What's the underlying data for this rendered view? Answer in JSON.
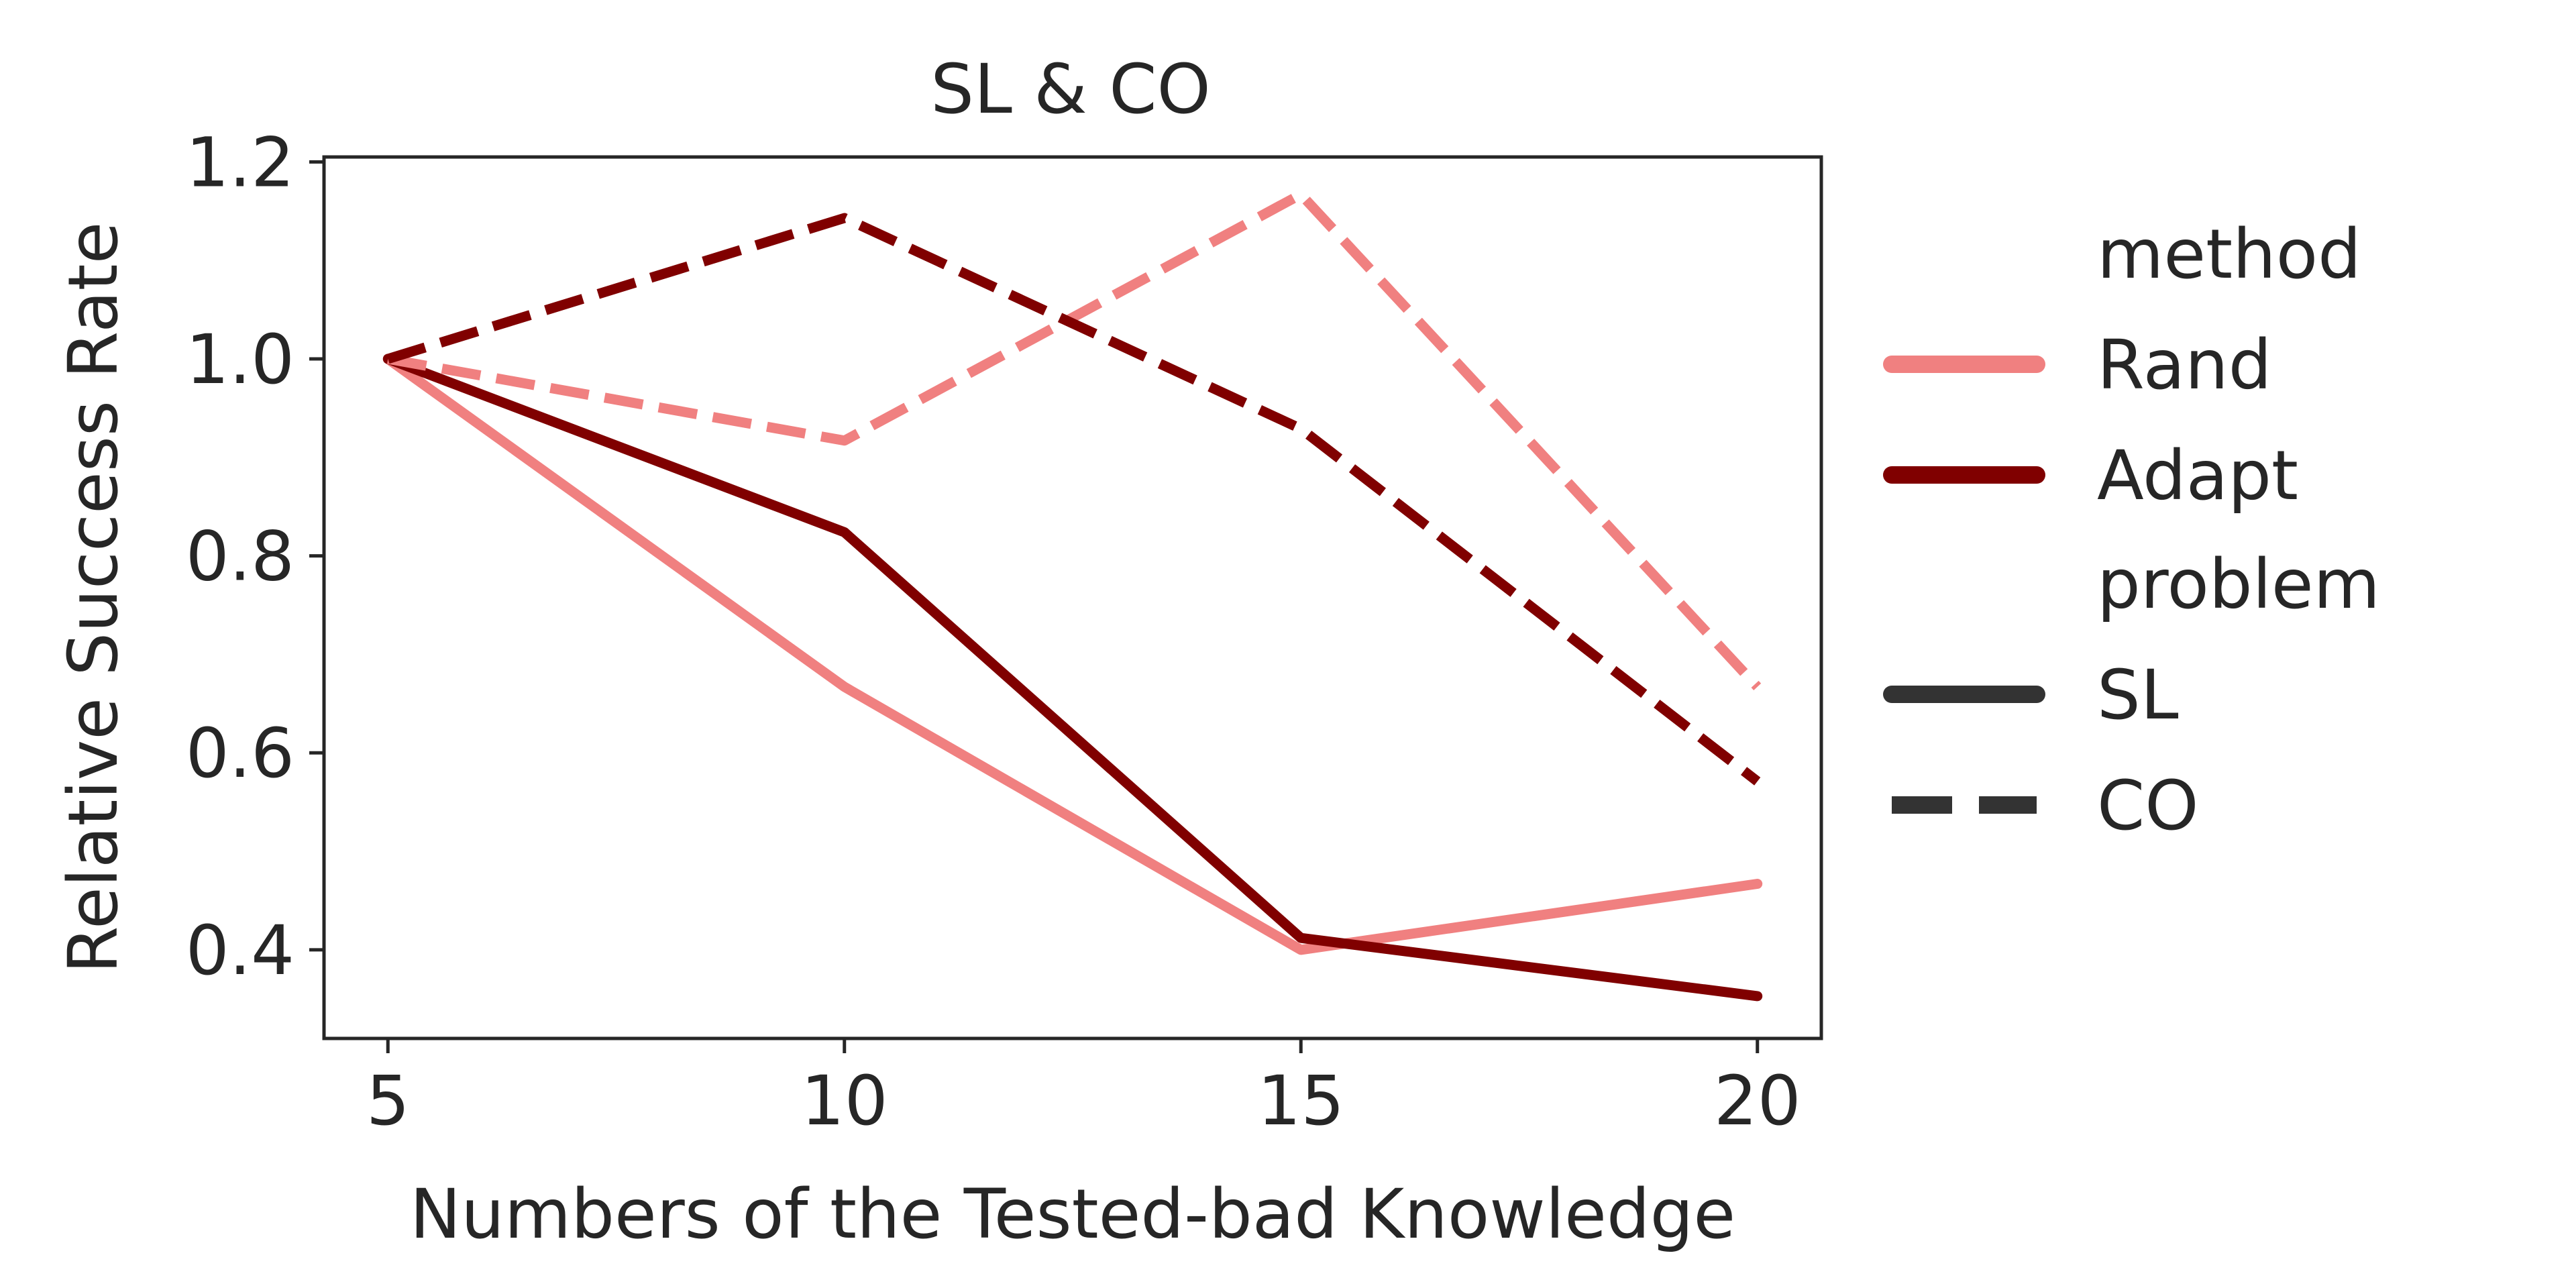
{
  "chart_data": {
    "type": "line",
    "title": "SL & CO",
    "xlabel": "Numbers of the Tested-bad Knowledge",
    "ylabel": "Relative Success Rate",
    "x": [
      5,
      10,
      15,
      20
    ],
    "xticks": [
      5,
      10,
      15,
      20
    ],
    "xlim": [
      4.3,
      20.7
    ],
    "yticks": [
      0.4,
      0.6,
      0.8,
      1.0,
      1.2
    ],
    "ytick_labels": [
      "0.4",
      "0.6",
      "0.8",
      "1.0",
      "1.2"
    ],
    "ylim": [
      0.31,
      1.205
    ],
    "grid": false,
    "legend": {
      "placement": "right-outside",
      "method_title": "method",
      "problem_title": "problem",
      "methods": [
        {
          "label": "Rand",
          "color": "#f08080"
        },
        {
          "label": "Adapt",
          "color": "#800000"
        }
      ],
      "problems": [
        {
          "label": "SL",
          "style": "solid"
        },
        {
          "label": "CO",
          "style": "dashed"
        }
      ]
    },
    "series": [
      {
        "method": "Rand",
        "problem": "SL",
        "color": "#f08080",
        "style": "solid",
        "values": [
          1.0,
          0.667,
          0.4,
          0.467
        ]
      },
      {
        "method": "Adapt",
        "problem": "SL",
        "color": "#800000",
        "style": "solid",
        "values": [
          1.0,
          0.824,
          0.412,
          0.353
        ]
      },
      {
        "method": "Rand",
        "problem": "CO",
        "color": "#f08080",
        "style": "dashed",
        "values": [
          1.0,
          0.917,
          1.167,
          0.667
        ]
      },
      {
        "method": "Adapt",
        "problem": "CO",
        "color": "#800000",
        "style": "dashed",
        "values": [
          1.0,
          1.143,
          0.929,
          0.571
        ]
      }
    ]
  }
}
